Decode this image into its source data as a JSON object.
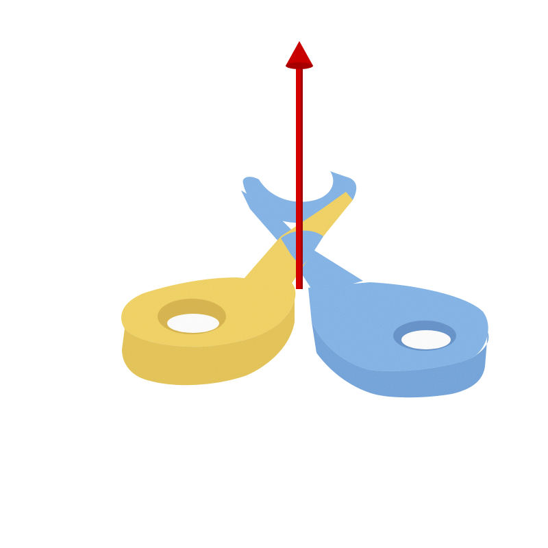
{
  "scene": {
    "background": "#ffffff",
    "parts": [
      {
        "name": "yellow-link",
        "color": "#f3d35a",
        "shadow": "#dcb93f"
      },
      {
        "name": "blue-link",
        "color": "#7fb3e8",
        "shadow": "#5f97d2"
      },
      {
        "name": "rotation-axis",
        "color": "#d40000"
      }
    ],
    "icons": [
      "rotation-axis-arrow-icon",
      "rotation-direction-icon"
    ]
  }
}
